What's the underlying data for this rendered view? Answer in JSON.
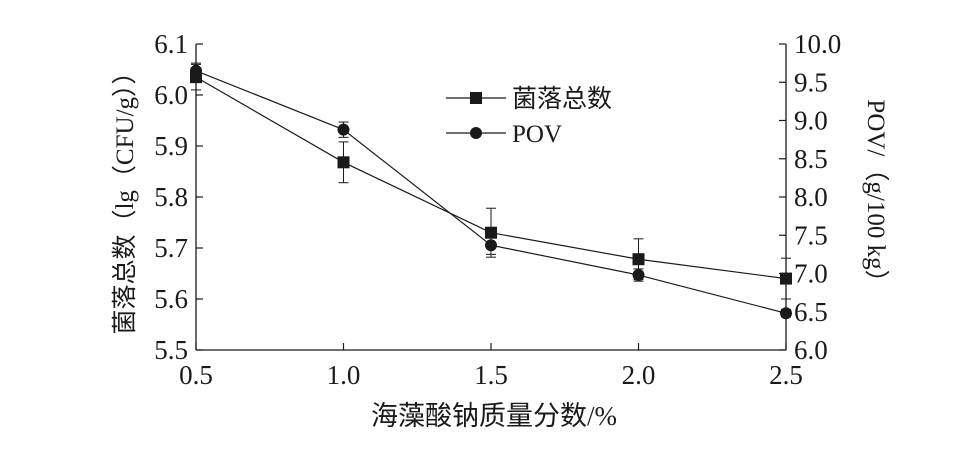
{
  "chart_data": {
    "type": "line",
    "x": [
      0.5,
      1.0,
      1.5,
      2.0,
      2.5
    ],
    "x_tick_labels": [
      "0.5",
      "1.0",
      "1.5",
      "2.0",
      "2.5"
    ],
    "xlabel": "海藻酸钠质量分数/%",
    "xlim": [
      0.5,
      2.5
    ],
    "left_axis": {
      "label": "菌落总数（lg（CFU/g））",
      "lim": [
        5.5,
        6.1
      ],
      "ticks": [
        5.5,
        5.6,
        5.7,
        5.8,
        5.9,
        6.0,
        6.1
      ],
      "tick_labels": [
        "5.5",
        "5.6",
        "5.7",
        "5.8",
        "5.9",
        "6.0",
        "6.1"
      ]
    },
    "right_axis": {
      "label": "POV/（g/100 kg）",
      "lim": [
        6.0,
        10.0
      ],
      "ticks": [
        6.0,
        6.5,
        7.0,
        7.5,
        8.0,
        8.5,
        9.0,
        9.5,
        10.0
      ],
      "tick_labels": [
        "6.0",
        "6.5",
        "7.0",
        "7.5",
        "8.0",
        "8.5",
        "9.0",
        "9.5",
        "10.0"
      ]
    },
    "series": [
      {
        "name": "菌落总数",
        "axis": "left",
        "marker": "square",
        "values": [
          6.035,
          5.868,
          5.73,
          5.678,
          5.64
        ],
        "errors": [
          0.025,
          0.04,
          0.048,
          0.04,
          0.04
        ]
      },
      {
        "name": "POV",
        "axis": "right",
        "marker": "circle",
        "values": [
          9.65,
          8.88,
          7.37,
          6.98,
          6.48
        ],
        "errors": [
          0.1,
          0.1,
          0.12,
          0.08,
          0.05
        ]
      }
    ],
    "legend_position": "top-center",
    "grid": false,
    "colors": {
      "line": "#1a1a1a",
      "marker": "#1a1a1a"
    }
  }
}
